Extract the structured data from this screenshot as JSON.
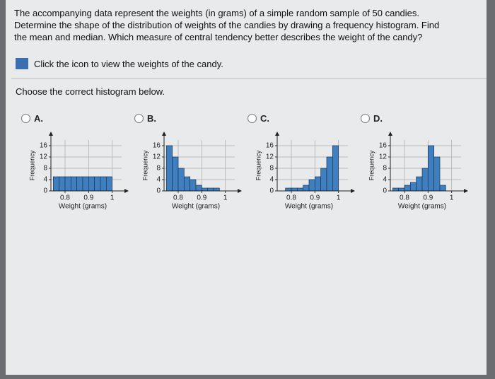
{
  "question": "The accompanying data represent the weights (in grams) of a simple random sample of 50 candies. Determine the shape of the distribution of weights of the candies by drawing a frequency histogram. Find the mean and median. Which measure of central tendency better describes the weight of the candy?",
  "link_text": "Click the icon to view the weights of the candy.",
  "prompt": "Choose the correct histogram below.",
  "options": [
    "A.",
    "B.",
    "C.",
    "D."
  ],
  "chart_data": [
    {
      "type": "histogram",
      "xlabel": "Weight (grams)",
      "ylabel": "Frequency",
      "color": "#3f7fbf",
      "bins": [
        0.75,
        0.775,
        0.8,
        0.825,
        0.85,
        0.875,
        0.9,
        0.925,
        0.95,
        0.975,
        1.0
      ],
      "values": [
        5,
        5,
        5,
        5,
        5,
        5,
        5,
        5,
        5,
        5
      ],
      "xlim": [
        0.74,
        1.04
      ],
      "xticks": [
        0.8,
        0.9,
        1
      ],
      "ylim": [
        0,
        18
      ],
      "yticks": [
        0,
        4,
        8,
        12,
        16
      ],
      "grid": true
    },
    {
      "type": "histogram",
      "xlabel": "Weight (grams)",
      "ylabel": "Frequency",
      "color": "#3f7fbf",
      "bins": [
        0.75,
        0.775,
        0.8,
        0.825,
        0.85,
        0.875,
        0.9,
        0.925,
        0.95,
        0.975,
        1.0
      ],
      "values": [
        16,
        12,
        8,
        5,
        4,
        2,
        1,
        1,
        1,
        0
      ],
      "xlim": [
        0.74,
        1.04
      ],
      "xticks": [
        0.8,
        0.9,
        1
      ],
      "ylim": [
        0,
        18
      ],
      "yticks": [
        0,
        4,
        8,
        12,
        16
      ],
      "grid": true
    },
    {
      "type": "histogram",
      "xlabel": "Weight (grams)",
      "ylabel": "Frequency",
      "color": "#3f7fbf",
      "bins": [
        0.75,
        0.775,
        0.8,
        0.825,
        0.85,
        0.875,
        0.9,
        0.925,
        0.95,
        0.975,
        1.0
      ],
      "values": [
        0,
        1,
        1,
        1,
        2,
        4,
        5,
        8,
        12,
        16
      ],
      "xlim": [
        0.74,
        1.04
      ],
      "xticks": [
        0.8,
        0.9,
        1
      ],
      "ylim": [
        0,
        18
      ],
      "yticks": [
        0,
        4,
        8,
        12,
        16
      ],
      "grid": true
    },
    {
      "type": "histogram",
      "xlabel": "Weight (grams)",
      "ylabel": "Frequency",
      "color": "#3f7fbf",
      "bins": [
        0.75,
        0.775,
        0.8,
        0.825,
        0.85,
        0.875,
        0.9,
        0.925,
        0.95,
        0.975,
        1.0
      ],
      "values": [
        1,
        1,
        2,
        3,
        5,
        8,
        16,
        12,
        2,
        0
      ],
      "xlim": [
        0.74,
        1.04
      ],
      "xticks": [
        0.8,
        0.9,
        1
      ],
      "ylim": [
        0,
        18
      ],
      "yticks": [
        0,
        4,
        8,
        12,
        16
      ],
      "grid": true
    }
  ]
}
